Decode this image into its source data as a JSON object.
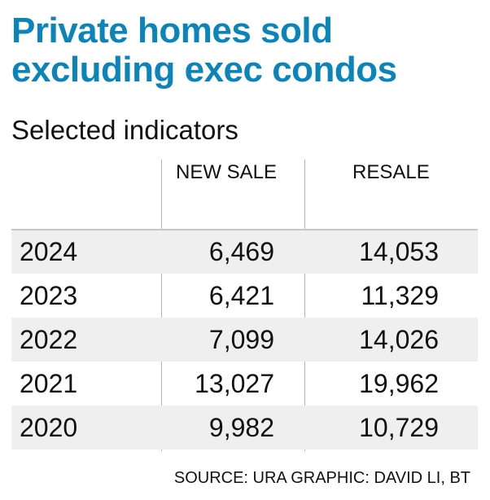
{
  "title_line1": "Private homes sold",
  "title_line2": "excluding exec condos",
  "subtitle": "Selected indicators",
  "source": "SOURCE: URA   GRAPHIC: DAVID LI, BT",
  "colors": {
    "title": "#0b84b9",
    "row_shade": "#efefef"
  },
  "chart_data": {
    "type": "table",
    "columns": [
      "",
      "NEW SALE",
      "RESALE"
    ],
    "rows": [
      [
        "2024",
        "6,469",
        "14,053"
      ],
      [
        "2023",
        "6,421",
        "11,329"
      ],
      [
        "2022",
        "7,099",
        "14,026"
      ],
      [
        "2021",
        "13,027",
        "19,962"
      ],
      [
        "2020",
        "9,982",
        "10,729"
      ]
    ]
  }
}
